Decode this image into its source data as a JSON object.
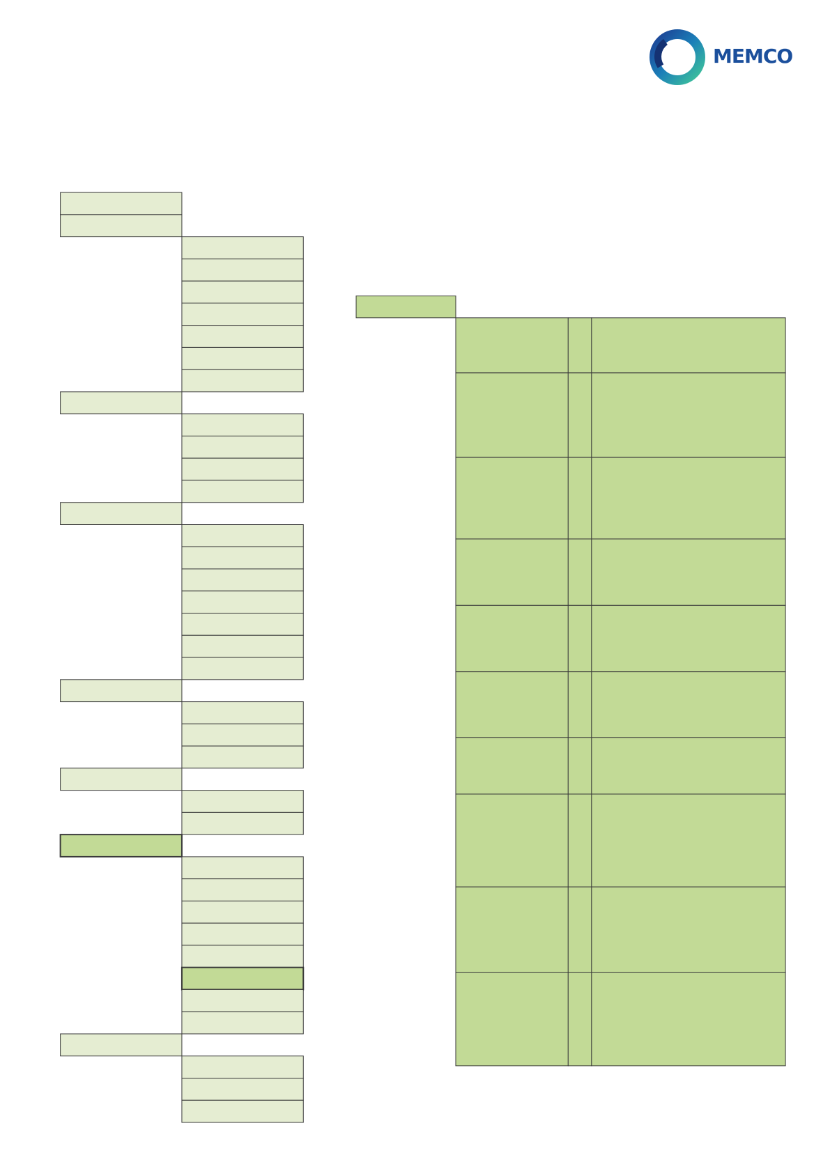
{
  "logo": {
    "text": "MEMCO"
  }
}
